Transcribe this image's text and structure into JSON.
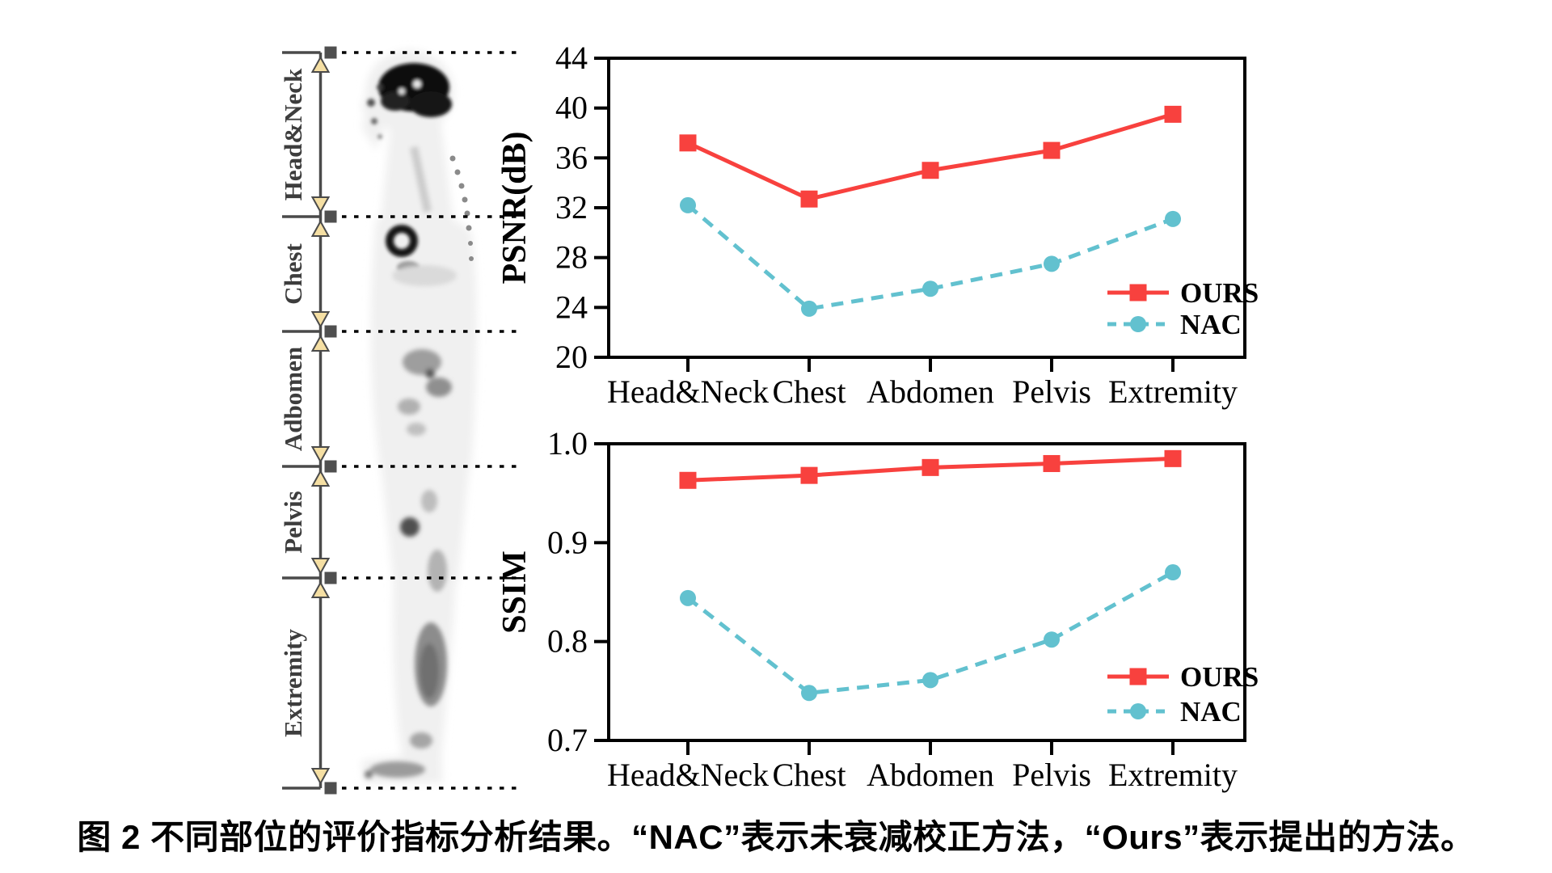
{
  "figure": {
    "caption": "图 2 不同部位的评价指标分析结果。“NAC”表示未衰减校正方法，“Ours”表示提出的方法。"
  },
  "colors": {
    "ours": "#f8413e",
    "nac": "#62c1cf",
    "axis": "#000000",
    "anatomy_line": "#4a4a4a",
    "arrowhead_fill": "#f5dfa3"
  },
  "anatomy": {
    "region_labels": [
      "Head&Neck",
      "Chest",
      "Adbomen",
      "Pelvis",
      "Extremity"
    ]
  },
  "legend": {
    "ours": "OURS",
    "nac": "NAC"
  },
  "chart_data": [
    {
      "type": "line",
      "title": "",
      "xlabel": "",
      "ylabel": "PSNR(dB)",
      "categories": [
        "Head&Neck",
        "Chest",
        "Abdomen",
        "Pelvis",
        "Extremity"
      ],
      "series": [
        {
          "name": "OURS",
          "values": [
            37.2,
            32.7,
            35.0,
            36.6,
            39.5
          ]
        },
        {
          "name": "NAC",
          "values": [
            32.2,
            23.9,
            25.5,
            27.5,
            31.1
          ]
        }
      ],
      "ylim": [
        20,
        44
      ],
      "yticks": [
        20,
        24,
        28,
        32,
        36,
        40,
        44
      ],
      "ytick_labels": [
        "20",
        "24",
        "28",
        "32",
        "36",
        "40",
        "44"
      ],
      "legend_position": "lower right",
      "grid": false
    },
    {
      "type": "line",
      "title": "",
      "xlabel": "",
      "ylabel": "SSIM",
      "categories": [
        "Head&Neck",
        "Chest",
        "Abdomen",
        "Pelvis",
        "Extremity"
      ],
      "series": [
        {
          "name": "OURS",
          "values": [
            0.963,
            0.968,
            0.976,
            0.98,
            0.985
          ]
        },
        {
          "name": "NAC",
          "values": [
            0.844,
            0.748,
            0.761,
            0.802,
            0.87
          ]
        }
      ],
      "ylim": [
        0.7,
        1.0
      ],
      "yticks": [
        0.7,
        0.8,
        0.9,
        1.0
      ],
      "ytick_labels": [
        "0.7",
        "0.8",
        "0.9",
        "1.0"
      ],
      "legend_position": "lower right",
      "grid": false
    }
  ]
}
